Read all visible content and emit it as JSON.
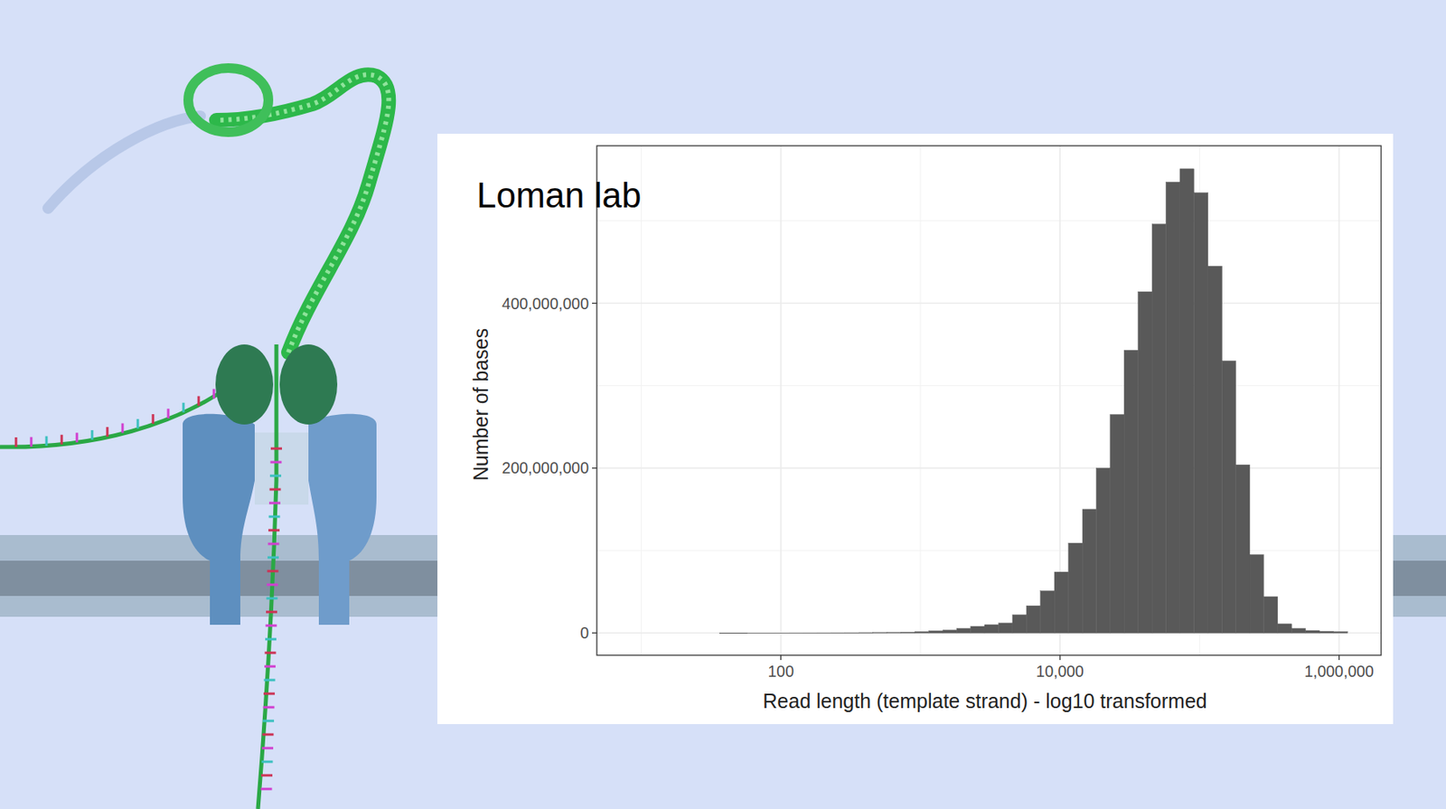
{
  "chart_data": {
    "type": "histogram",
    "annotation": "Loman lab",
    "x_label": "Read length (template strand) - log10 transformed",
    "y_label": "Number of bases",
    "bins": [
      36.3,
      45.7,
      57.5,
      72.4,
      91.2,
      115,
      145,
      182,
      229,
      288,
      363,
      457,
      575,
      724,
      912,
      1150,
      1450,
      1820,
      2290,
      2880,
      3630,
      4570,
      5750,
      7240,
      9120,
      11500,
      14500,
      18200,
      22900,
      28800,
      36300,
      45700,
      57500,
      72400,
      91200,
      115000,
      145000,
      182000,
      229000,
      288000,
      363000,
      457000,
      575000,
      724000,
      912000,
      1150000
    ],
    "counts": [
      10000,
      10000,
      20000,
      20000,
      30000,
      50000,
      70000,
      100000,
      150000,
      200000,
      300000,
      500000,
      700000,
      1000000,
      1500000,
      2500000,
      3500000,
      5500000,
      8000000,
      10000000,
      12000000,
      22000000,
      33000000,
      51000000,
      74000000,
      109000000,
      150000000,
      200000000,
      265000000,
      343000000,
      414000000,
      496000000,
      547000000,
      563000000,
      534000000,
      445000000,
      330000000,
      204000000,
      95000000,
      44000000,
      11000000,
      5500000,
      3000000,
      2000000,
      1500000
    ],
    "color": "#595959",
    "log": "x",
    "grid": true,
    "xlim": [
      4.8,
      2000000
    ],
    "ylim": [
      -27000000,
      591000000
    ],
    "xticks": [
      100,
      {
        "value": 10000,
        "label": "10,000"
      },
      {
        "value": 1000000,
        "label": "1,000,000"
      }
    ],
    "yticks": [
      0,
      {
        "value": 200000000,
        "label": "200,000,000"
      },
      {
        "value": 400000000,
        "label": "400,000,000"
      }
    ]
  }
}
